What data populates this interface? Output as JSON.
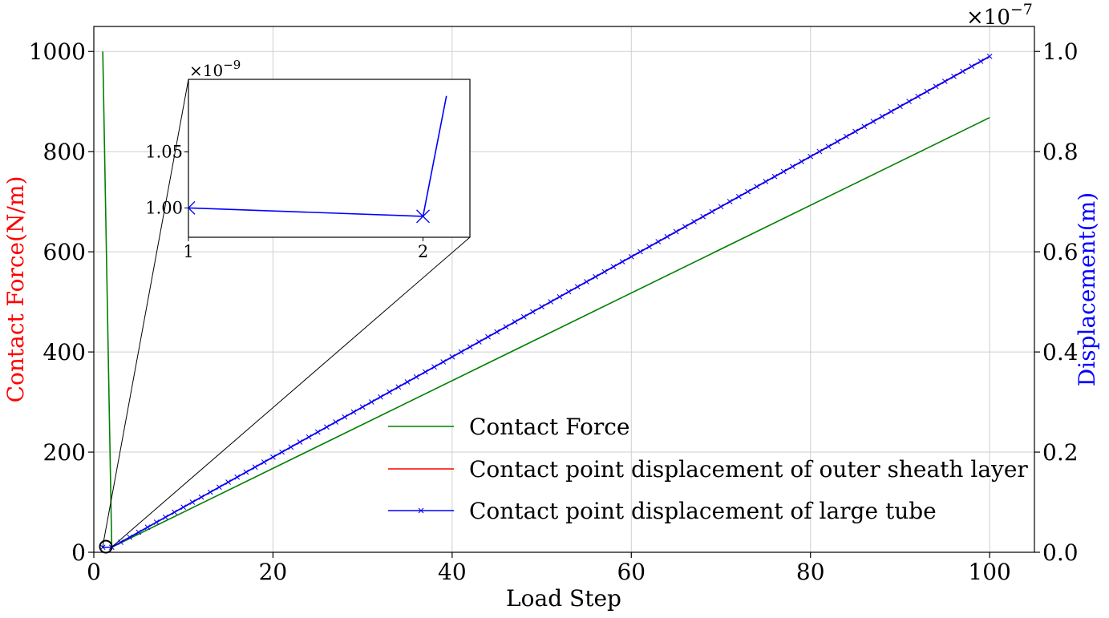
{
  "chart_data": {
    "type": "line",
    "xlabel": "Load Step",
    "ylabel_left": "Contact Force(N/m)",
    "ylabel_right": "Displacement(m)",
    "xlim": [
      0,
      105
    ],
    "ylim_left": [
      0,
      1050
    ],
    "ylim_right": [
      0,
      1.05
    ],
    "right_axis_multiplier": "×10",
    "right_axis_exponent": "−7",
    "x_ticks": [
      "0",
      "20",
      "40",
      "60",
      "80",
      "100"
    ],
    "left_ticks": [
      "0",
      "200",
      "400",
      "600",
      "800",
      "1000"
    ],
    "right_ticks": [
      "0.0",
      "0.2",
      "0.4",
      "0.6",
      "0.8",
      "1.0"
    ],
    "grid": true,
    "legend_position": "lower-right",
    "colors": {
      "force": "#008000",
      "sheath": "#ff0000",
      "tube": "#0000ff",
      "left_label": "#ff0000",
      "right_label": "#0000ff"
    },
    "series": [
      {
        "name": "Contact Force",
        "axis": "left",
        "marker": "none",
        "x": [
          1,
          2,
          100
        ],
        "y": [
          1000,
          10,
          868
        ]
      },
      {
        "name": "Contact point displacement of outer sheath layer",
        "axis": "right",
        "marker": "none",
        "x": [
          1,
          2,
          100
        ],
        "y": [
          0.01,
          0.01,
          0.9898
        ]
      },
      {
        "name": "Contact point displacement of large tube",
        "axis": "right",
        "marker": "x",
        "x_start": 1,
        "x_end": 100,
        "x_step": 1,
        "y_start": 0.01,
        "y_step2": 0.00999,
        "y_end": 0.9904
      }
    ],
    "inset": {
      "multiplier": "×10",
      "exponent": "−9",
      "x_ticks": [
        "1",
        "2"
      ],
      "y_ticks": [
        "1.00",
        "1.05"
      ],
      "xlim": [
        1,
        2.2
      ],
      "ylim": [
        0.9738,
        1.1148
      ],
      "series": {
        "x": [
          1,
          2,
          2.1
        ],
        "y": [
          1.0,
          0.9925,
          1.1
        ]
      }
    }
  }
}
